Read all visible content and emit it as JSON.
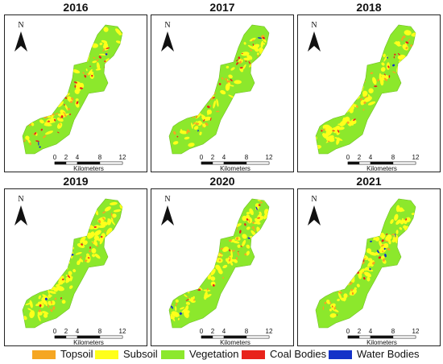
{
  "panels": [
    {
      "year": "2016"
    },
    {
      "year": "2017"
    },
    {
      "year": "2018"
    },
    {
      "year": "2019"
    },
    {
      "year": "2020"
    },
    {
      "year": "2021"
    }
  ],
  "map": {
    "north_label": "N",
    "scale_ticks": [
      "0",
      "2",
      "4",
      "8",
      "12"
    ],
    "scale_unit": "Kilometers"
  },
  "legend": [
    {
      "label": "Topsoil",
      "color": "#f5a623"
    },
    {
      "label": "Subsoil",
      "color": "#ffff1a"
    },
    {
      "label": "Vegetation",
      "color": "#8ce82c"
    },
    {
      "label": "Coal Bodies",
      "color": "#e8231b"
    },
    {
      "label": "Water Bodies",
      "color": "#1432c8"
    }
  ]
}
